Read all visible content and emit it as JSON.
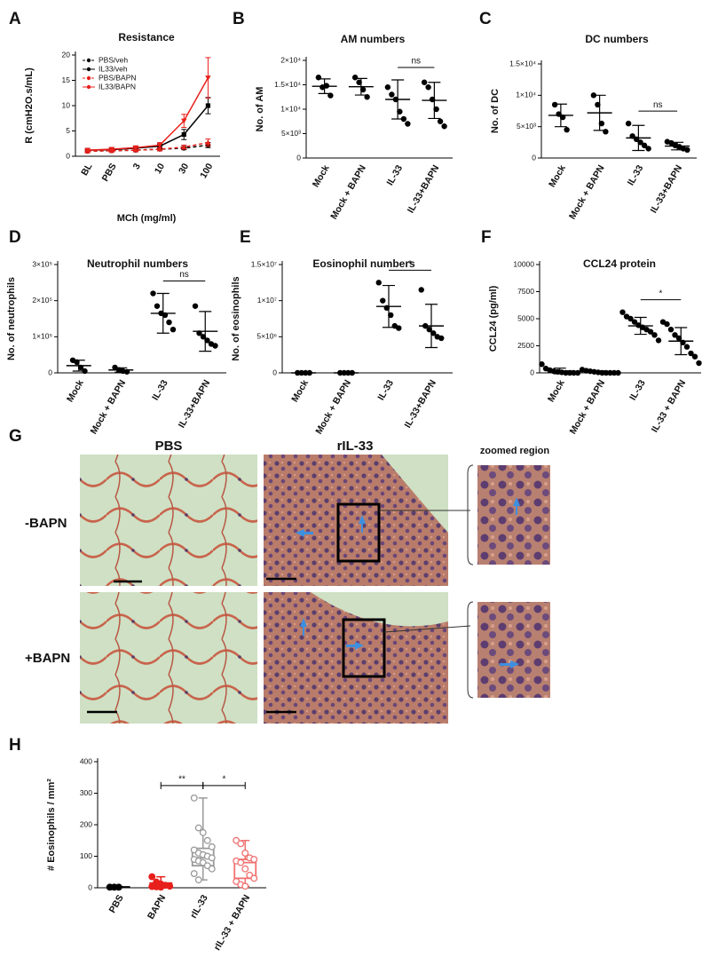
{
  "chart_data": [
    {
      "type": "line",
      "panel": "A",
      "title": "Resistance",
      "y_label": "R (cmH2O.s/mL)",
      "x_label": "MCh (mg/ml)",
      "categories": [
        "BL",
        "PBS",
        "3",
        "10",
        "30",
        "100"
      ],
      "ylim": [
        0,
        20
      ],
      "yticks": [
        0,
        5,
        10,
        15,
        20
      ],
      "legend": "upper left",
      "series": [
        {
          "name": "PBS/veh",
          "color": "#000000",
          "marker": "circle",
          "linestyle": "dashed",
          "values": [
            1,
            1.1,
            1.2,
            1.4,
            1.6,
            2.2
          ],
          "errors": [
            0.2,
            0.2,
            0.2,
            0.3,
            0.3,
            0.5
          ]
        },
        {
          "name": "IL33/veh",
          "color": "#000000",
          "marker": "square",
          "linestyle": "solid",
          "values": [
            1.2,
            1.3,
            1.6,
            2.0,
            4.3,
            10
          ],
          "errors": [
            0.2,
            0.3,
            0.3,
            0.4,
            1.0,
            1.6
          ]
        },
        {
          "name": "PBS/BAPN",
          "color": "#e8201c",
          "marker": "triangle",
          "linestyle": "dashed",
          "values": [
            1,
            1.1,
            1.2,
            1.4,
            1.8,
            2.7
          ],
          "errors": [
            0.2,
            0.2,
            0.2,
            0.3,
            0.4,
            0.7
          ]
        },
        {
          "name": "IL33/BAPN",
          "color": "#e8201c",
          "marker": "triangle-down",
          "linestyle": "solid",
          "values": [
            1.2,
            1.4,
            1.7,
            2.2,
            7,
            15.5
          ],
          "errors": [
            0.2,
            0.3,
            0.3,
            0.5,
            1.3,
            4
          ]
        }
      ]
    },
    {
      "type": "dot",
      "panel": "B",
      "title": "AM numbers",
      "y_label": "No. of AM",
      "color": "#000000",
      "categories": [
        "Mock",
        "Mock + BAPN",
        "IL-33",
        "IL-33+BAPN"
      ],
      "ylim": [
        0,
        20000
      ],
      "yticks": [
        0,
        {
          "value": 5000,
          "label": "5×10³"
        },
        {
          "value": 10000,
          "label": "1×10⁴"
        },
        {
          "value": 15000,
          "label": "1.5×10⁴"
        },
        {
          "value": 20000,
          "label": "2×10⁴"
        }
      ],
      "points": [
        [
          16500,
          14500,
          14800,
          12800
        ],
        [
          16500,
          15500,
          14000,
          12500
        ],
        [
          14500,
          13000,
          12000,
          9500,
          8000,
          7000
        ],
        [
          15500,
          14500,
          12000,
          10000,
          7500,
          6500
        ]
      ],
      "mean": [
        14700,
        14600,
        12000,
        11800
      ],
      "sd": [
        1500,
        1700,
        4000,
        3700
      ],
      "annotations": [
        {
          "text": "ns",
          "between": [
            2,
            3
          ]
        }
      ]
    },
    {
      "type": "dot",
      "panel": "C",
      "title": "DC numbers",
      "y_label": "No. of DC",
      "color": "#000000",
      "categories": [
        "Mock",
        "Mock + BAPN",
        "IL-33",
        "IL-33+BAPN"
      ],
      "ylim": [
        0,
        15000
      ],
      "yticks": [
        0,
        {
          "value": 5000,
          "label": "5×10³"
        },
        {
          "value": 10000,
          "label": "1×10⁴"
        },
        {
          "value": 15000,
          "label": "1.5×10⁴"
        }
      ],
      "points": [
        [
          8500,
          7000,
          6500,
          4500
        ],
        [
          10000,
          8500,
          5500,
          4200
        ],
        [
          5500,
          3500,
          3000,
          2500,
          2000,
          1500
        ],
        [
          2600,
          2400,
          2000,
          1800,
          1500,
          1300
        ]
      ],
      "mean": [
        6800,
        7200,
        3200,
        1900
      ],
      "sd": [
        1800,
        2800,
        2000,
        600
      ],
      "annotations": [
        {
          "text": "ns",
          "between": [
            2,
            3
          ]
        }
      ]
    },
    {
      "type": "dot",
      "panel": "D",
      "title": "Neutrophil numbers",
      "y_label": "No. of neutrophils",
      "color": "#000000",
      "categories": [
        "Mock",
        "Mock + BAPN",
        "IL-33",
        "IL-33+BAPN"
      ],
      "ylim": [
        0,
        300000
      ],
      "yticks": [
        0,
        {
          "value": 100000,
          "label": "1×10⁵"
        },
        {
          "value": 200000,
          "label": "2×10⁵"
        },
        {
          "value": 300000,
          "label": "3×10⁵"
        }
      ],
      "points": [
        [
          35000,
          30000,
          15000,
          5000
        ],
        [
          15000,
          8000,
          5000,
          3000
        ],
        [
          220000,
          185000,
          165000,
          160000,
          140000,
          120000
        ],
        [
          185000,
          110000,
          100000,
          90000,
          80000,
          75000
        ]
      ],
      "mean": [
        20000,
        8000,
        165000,
        115000
      ],
      "sd": [
        15000,
        6000,
        55000,
        55000
      ],
      "annotations": [
        {
          "text": "ns",
          "between": [
            2,
            3
          ]
        }
      ]
    },
    {
      "type": "dot",
      "panel": "E",
      "title": "Eosinophil numbers",
      "y_label": "No. of eosinophils",
      "color": "#000000",
      "categories": [
        "Mock",
        "Mock + BAPN",
        "IL-33",
        "IL-33+BAPN"
      ],
      "ylim": [
        0,
        15000000
      ],
      "yticks": [
        0,
        {
          "value": 5000000,
          "label": "5×10⁶"
        },
        {
          "value": 10000000,
          "label": "1×10⁷"
        },
        {
          "value": 15000000,
          "label": "1.5×10⁷"
        }
      ],
      "points": [
        [
          0,
          0,
          0,
          0
        ],
        [
          0,
          0,
          0,
          0
        ],
        [
          12500000,
          10000000,
          9000000,
          8000000,
          6500000,
          6200000
        ],
        [
          11500000,
          6500000,
          6000000,
          5500000,
          5000000,
          4800000
        ]
      ],
      "mean": [
        0,
        0,
        9200000,
        6500000
      ],
      "sd": [
        0,
        0,
        2900000,
        3000000
      ],
      "annotations": [
        {
          "text": "*",
          "between": [
            2,
            3
          ]
        }
      ]
    },
    {
      "type": "dot",
      "panel": "F",
      "title": "CCL24 protein",
      "y_label": "CCL24 (pg/ml)",
      "color": "#000000",
      "categories": [
        "Mock",
        "Mock + BAPN",
        "IL-33",
        "IL-33 + BAPN"
      ],
      "ylim": [
        0,
        10000
      ],
      "yticks": [
        0,
        2500,
        5000,
        7500,
        10000
      ],
      "points": [
        [
          800,
          400,
          250,
          150,
          100,
          50,
          0,
          0,
          0,
          0
        ],
        [
          300,
          200,
          150,
          100,
          50,
          0,
          0,
          0,
          0,
          0
        ],
        [
          5600,
          5200,
          5000,
          4700,
          4400,
          4200,
          4000,
          3800,
          3500,
          3000
        ],
        [
          4700,
          4500,
          4000,
          3500,
          3200,
          2800,
          2400,
          1800,
          1500,
          900
        ]
      ],
      "mean": [
        175,
        85,
        4340,
        2930
      ],
      "sd": [
        260,
        100,
        780,
        1250
      ],
      "annotations": [
        {
          "text": "*",
          "between": [
            2,
            3
          ]
        }
      ]
    },
    {
      "type": "box",
      "panel": "H",
      "y_label": "# Eosinophils / mm²",
      "categories": [
        "PBS",
        "BAPN",
        "rIL-33",
        "rIL-33 + BAPN"
      ],
      "colors": [
        "#000000",
        "#e8201c",
        "#9a9a9a",
        "#f07070"
      ],
      "filled": [
        true,
        true,
        false,
        false
      ],
      "ylim": [
        0,
        400
      ],
      "yticks": [
        0,
        100,
        200,
        300,
        400
      ],
      "min": [
        1,
        2,
        25,
        5
      ],
      "q1": [
        1.5,
        3,
        70,
        30
      ],
      "median": [
        2,
        6,
        95,
        80
      ],
      "q3": [
        2.5,
        15,
        125,
        90
      ],
      "max": [
        3,
        35,
        285,
        150
      ],
      "points": [
        [
          2,
          2,
          2
        ],
        [
          35,
          18,
          12,
          8,
          5,
          4,
          3,
          2
        ],
        [
          285,
          190,
          175,
          150,
          130,
          120,
          110,
          105,
          100,
          95,
          90,
          85,
          80,
          70,
          60,
          45,
          25
        ],
        [
          150,
          140,
          110,
          95,
          90,
          85,
          80,
          60,
          40,
          30,
          20,
          10,
          5
        ]
      ],
      "annotations": [
        {
          "text": "**",
          "between": [
            1,
            2
          ]
        },
        {
          "text": "*",
          "between": [
            2,
            3
          ]
        }
      ]
    }
  ],
  "panel_g": {
    "letter": "G",
    "columns": [
      "PBS",
      "rIL-33",
      "zoomed region"
    ],
    "rows": [
      "-BAPN",
      "+BAPN"
    ]
  }
}
